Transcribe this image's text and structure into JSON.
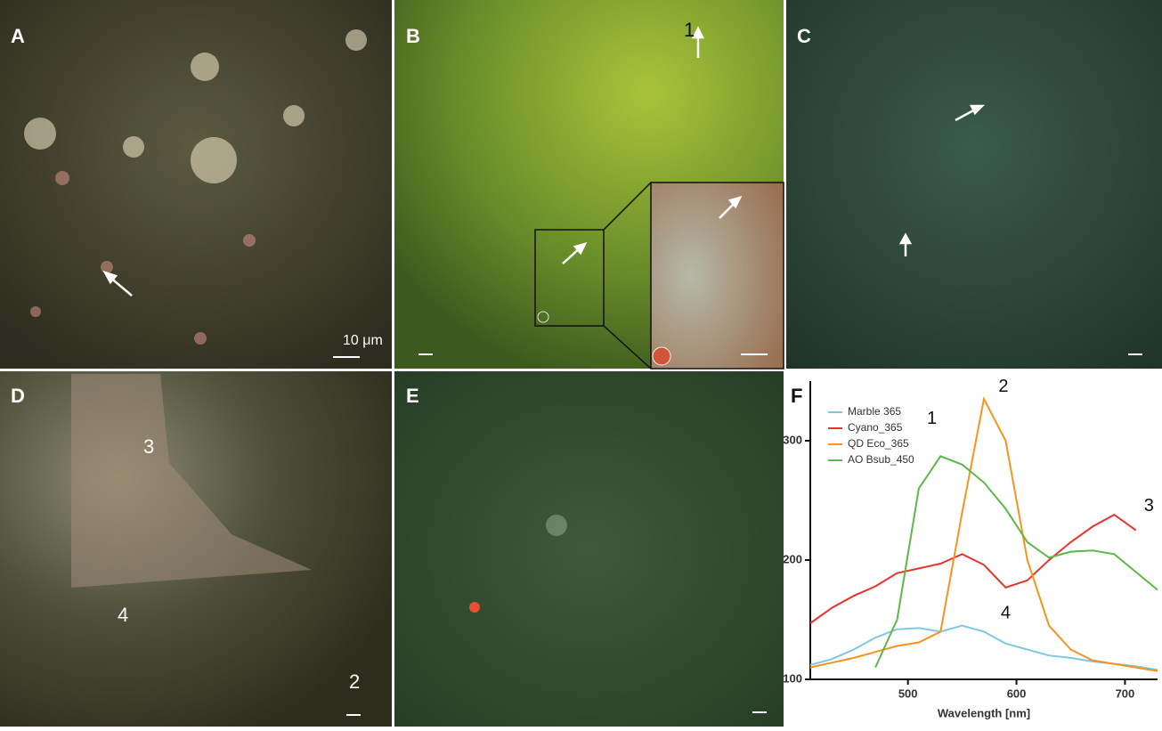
{
  "panels": [
    {
      "label": "A",
      "scale_label": "10 μm"
    },
    {
      "label": "B",
      "annotations": [
        "1"
      ]
    },
    {
      "label": "C"
    },
    {
      "label": "D",
      "annotations": [
        "3",
        "4",
        "2"
      ]
    },
    {
      "label": "E"
    },
    {
      "label": "F"
    }
  ],
  "chart_data": {
    "type": "line",
    "x_label": "Wavelength [nm]",
    "x": [
      410,
      430,
      450,
      470,
      490,
      510,
      530,
      550,
      570,
      590,
      610,
      630,
      650,
      670,
      690,
      710,
      730
    ],
    "series": [
      {
        "name": "Marble 365",
        "color": "#7ec8e3",
        "values": [
          112,
          117,
          125,
          135,
          142,
          143,
          140,
          145,
          140,
          130,
          125,
          120,
          118,
          115,
          113,
          111,
          108
        ]
      },
      {
        "name": "Cyano_365",
        "color": "#e8342c",
        "values": [
          147,
          160,
          170,
          178,
          189,
          193,
          197,
          205,
          196,
          177,
          183,
          200,
          215,
          228,
          238,
          225,
          null
        ]
      },
      {
        "name": "QD Eco_365",
        "color": "#f7931e",
        "values": [
          110,
          114,
          118,
          123,
          128,
          131,
          140,
          240,
          335,
          300,
          200,
          145,
          125,
          116,
          113,
          110,
          107
        ]
      },
      {
        "name": "AO Bsub_450",
        "color": "#5cb848",
        "values": [
          null,
          null,
          null,
          110,
          150,
          260,
          287,
          280,
          265,
          243,
          215,
          202,
          207,
          208,
          205,
          190,
          175
        ]
      }
    ],
    "annotations": [
      {
        "text": "1",
        "x": 522,
        "y": 318
      },
      {
        "text": "2",
        "x": 588,
        "y": 345
      },
      {
        "text": "3",
        "x": 722,
        "y": 245
      },
      {
        "text": "4",
        "x": 590,
        "y": 155
      }
    ],
    "xlim": [
      410,
      730
    ],
    "xticks": [
      500,
      600,
      700
    ],
    "ylim": [
      100,
      350
    ],
    "yticks": [
      100,
      200,
      300
    ],
    "legend": "upper left"
  }
}
